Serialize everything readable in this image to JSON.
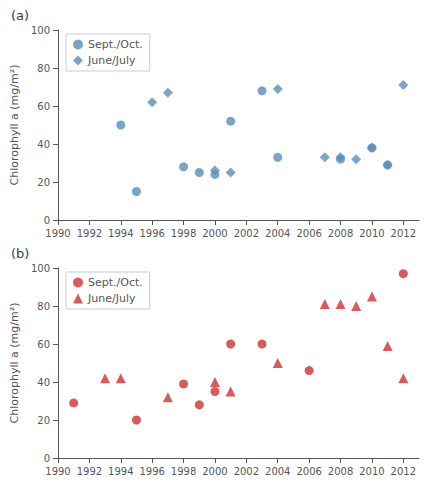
{
  "chart_data": [
    {
      "type": "scatter",
      "title": "(a)",
      "ylabel": "Chlorophyll a (mg/m²)",
      "series": [
        {
          "name": "Sept./Oct.",
          "color": "#5b8db8",
          "marker": "circle",
          "x": [
            1994,
            1995,
            1998,
            1999,
            2000,
            2001,
            2003,
            2004,
            2008,
            2010,
            2011
          ],
          "values": [
            50,
            15,
            28,
            25,
            24,
            52,
            68,
            33,
            32,
            38,
            29
          ]
        },
        {
          "name": "June/July",
          "color": "#5b8db8",
          "marker": "diamond",
          "x": [
            1996,
            1997,
            2000,
            2001,
            2004,
            2007,
            2008,
            2009,
            2010,
            2011,
            2012
          ],
          "values": [
            62,
            67,
            26,
            25,
            69,
            33,
            33,
            32,
            38,
            29,
            71
          ]
        }
      ],
      "xlim": [
        1990,
        2013
      ],
      "xticks": [
        1990,
        1992,
        1994,
        1996,
        1998,
        2000,
        2002,
        2004,
        2006,
        2008,
        2010,
        2012
      ],
      "ylim": [
        0,
        100
      ],
      "yticks": [
        0,
        20,
        40,
        60,
        80,
        100
      ],
      "grid": false,
      "legend": "upper left"
    },
    {
      "type": "scatter",
      "title": "(b)",
      "ylabel": "Chlorophyll a (mg/m²)",
      "series": [
        {
          "name": "Sept./Oct.",
          "color": "#cc3333",
          "marker": "circle",
          "x": [
            1991,
            1995,
            1998,
            1999,
            2000,
            2001,
            2003,
            2006,
            2012
          ],
          "values": [
            29,
            20,
            39,
            28,
            35,
            60,
            60,
            46,
            97
          ]
        },
        {
          "name": "June/July",
          "color": "#cc3333",
          "marker": "triangle",
          "x": [
            1993,
            1994,
            1997,
            2000,
            2001,
            2004,
            2007,
            2008,
            2009,
            2010,
            2011,
            2012
          ],
          "values": [
            42,
            42,
            32,
            40,
            35,
            50,
            81,
            81,
            80,
            85,
            59,
            42
          ]
        }
      ],
      "xlim": [
        1990,
        2013
      ],
      "xticks": [
        1990,
        1992,
        1994,
        1996,
        1998,
        2000,
        2002,
        2004,
        2006,
        2008,
        2010,
        2012
      ],
      "ylim": [
        0,
        100
      ],
      "yticks": [
        0,
        20,
        40,
        60,
        80,
        100
      ],
      "grid": false,
      "legend": "upper left"
    }
  ]
}
